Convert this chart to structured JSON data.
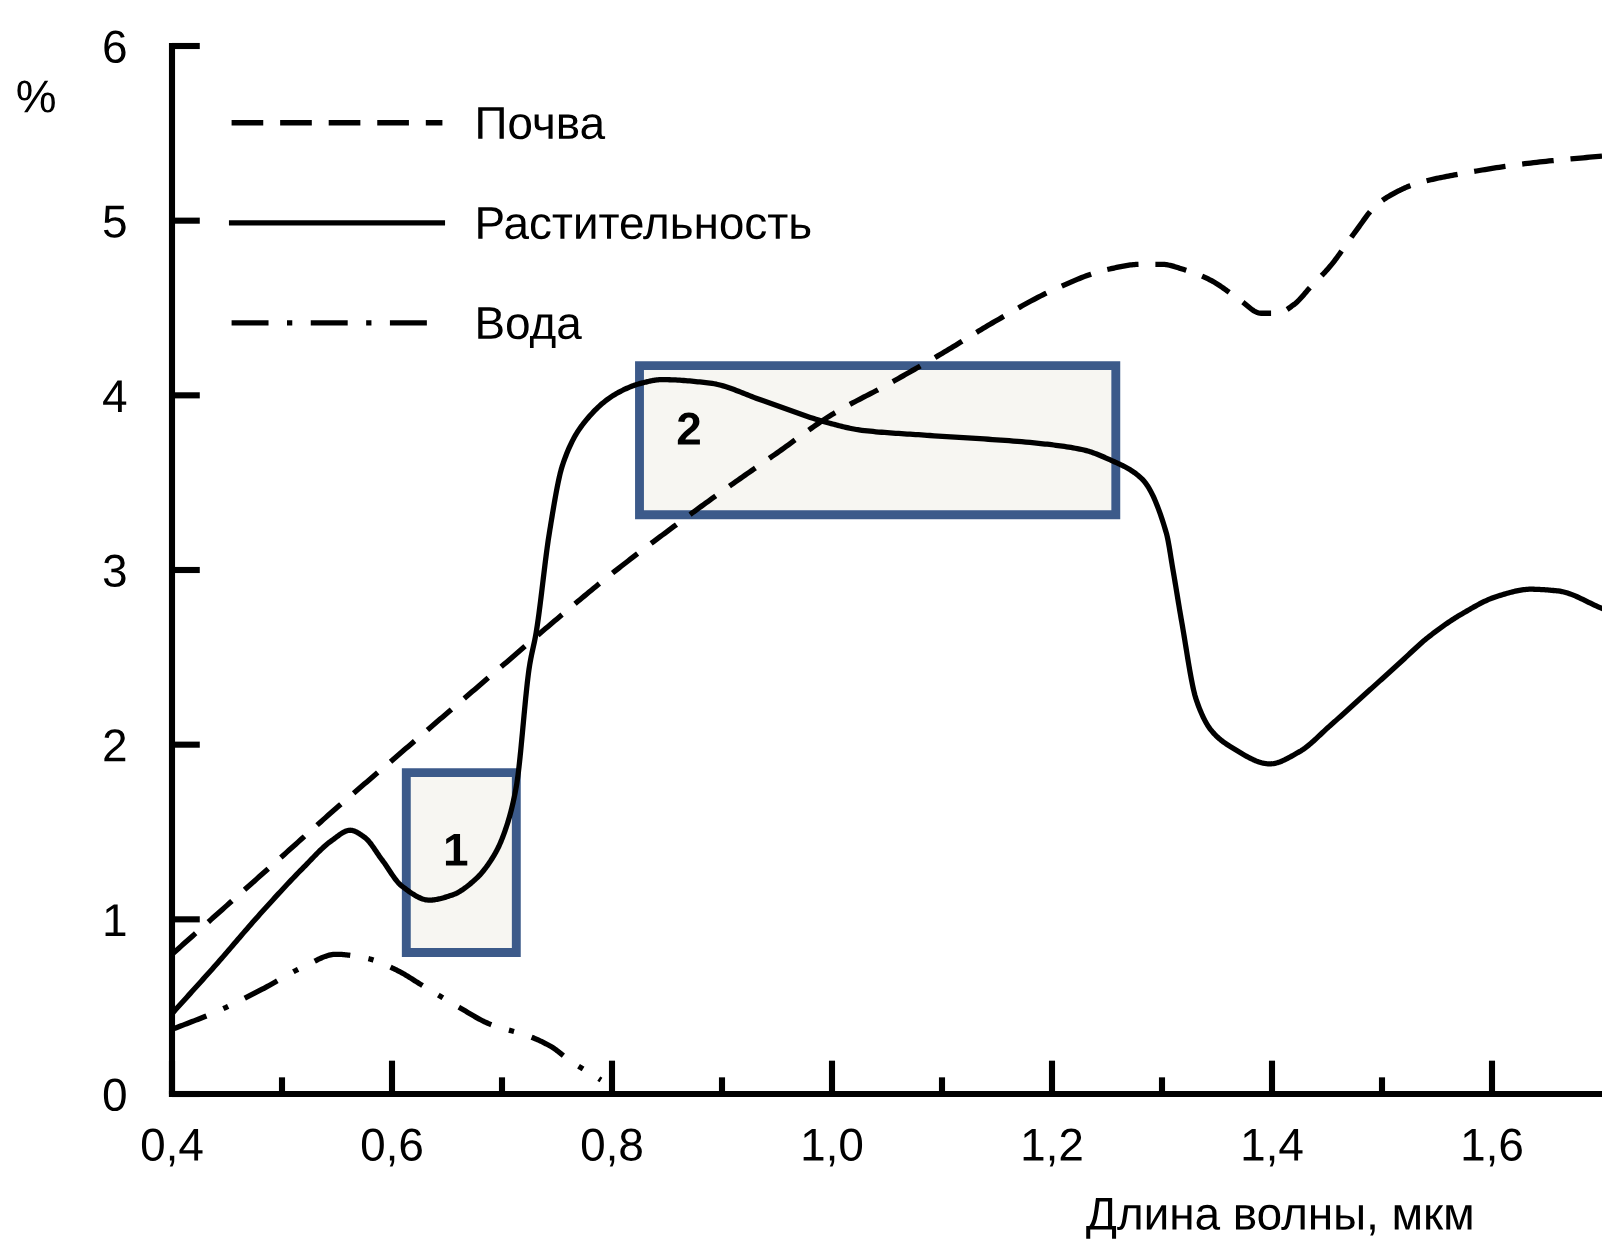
{
  "chart_data": {
    "type": "line",
    "xlabel": "Длина волны, мкм",
    "ylabel": "%",
    "xlim": [
      0.4,
      1.7
    ],
    "ylim": [
      0,
      6
    ],
    "xticks": [
      {
        "value": 0.4,
        "label": "0,4"
      },
      {
        "value": 0.5,
        "label": null
      },
      {
        "value": 0.6,
        "label": "0,6"
      },
      {
        "value": 0.7,
        "label": null
      },
      {
        "value": 0.8,
        "label": "0,8"
      },
      {
        "value": 0.9,
        "label": null
      },
      {
        "value": 1.0,
        "label": "1,0"
      },
      {
        "value": 1.1,
        "label": null
      },
      {
        "value": 1.2,
        "label": "1,2"
      },
      {
        "value": 1.3,
        "label": null
      },
      {
        "value": 1.4,
        "label": "1,4"
      },
      {
        "value": 1.5,
        "label": null
      },
      {
        "value": 1.6,
        "label": "1,6"
      }
    ],
    "yticks": [
      0,
      1,
      2,
      3,
      4,
      5,
      6
    ],
    "legend": "top left",
    "series": [
      {
        "name": "Почва",
        "color": "#000000",
        "line_style": "dashed",
        "x": [
          0.4,
          0.45,
          0.5,
          0.55,
          0.6,
          0.65,
          0.7,
          0.75,
          0.8,
          0.85,
          0.9,
          0.95,
          1.0,
          1.05,
          1.1,
          1.15,
          1.2,
          1.25,
          1.28,
          1.3,
          1.32,
          1.344,
          1.37,
          1.39,
          1.405,
          1.42,
          1.435,
          1.453,
          1.475,
          1.495,
          1.515,
          1.53,
          1.573,
          1.635,
          1.7
        ],
        "values": [
          0.8,
          1.08,
          1.36,
          1.64,
          1.91,
          2.18,
          2.45,
          2.72,
          2.98,
          3.22,
          3.45,
          3.67,
          3.89,
          4.06,
          4.24,
          4.43,
          4.6,
          4.72,
          4.75,
          4.75,
          4.72,
          4.66,
          4.55,
          4.47,
          4.47,
          4.52,
          4.62,
          4.74,
          4.93,
          5.09,
          5.17,
          5.21,
          5.27,
          5.33,
          5.37
        ]
      },
      {
        "name": "Растительность",
        "color": "#000000",
        "line_style": "solid",
        "x": [
          0.4,
          0.44,
          0.48,
          0.52,
          0.545,
          0.562,
          0.575,
          0.591,
          0.609,
          0.634,
          0.655,
          0.676,
          0.694,
          0.704,
          0.713,
          0.725,
          0.731,
          0.743,
          0.755,
          0.773,
          0.804,
          0.827,
          0.845,
          0.889,
          0.937,
          0.998,
          1.027,
          1.089,
          1.18,
          1.227,
          1.253,
          1.282,
          1.304,
          1.31,
          1.318,
          1.331,
          1.345,
          1.362,
          1.398,
          1.425,
          1.453,
          1.483,
          1.513,
          1.543,
          1.573,
          1.605,
          1.635,
          1.66,
          1.7
        ],
        "values": [
          0.46,
          0.74,
          1.03,
          1.3,
          1.45,
          1.51,
          1.47,
          1.34,
          1.19,
          1.11,
          1.14,
          1.23,
          1.38,
          1.53,
          1.76,
          2.45,
          2.64,
          3.21,
          3.6,
          3.83,
          4.01,
          4.07,
          4.09,
          4.07,
          3.97,
          3.84,
          3.8,
          3.77,
          3.73,
          3.69,
          3.63,
          3.52,
          3.21,
          3.0,
          2.7,
          2.26,
          2.08,
          1.99,
          1.89,
          1.96,
          2.11,
          2.28,
          2.45,
          2.62,
          2.75,
          2.85,
          2.89,
          2.88,
          2.78
        ]
      },
      {
        "name": "Вода",
        "color": "#000000",
        "line_style": "dashdot",
        "x": [
          0.4,
          0.44,
          0.482,
          0.52,
          0.549,
          0.575,
          0.604,
          0.628,
          0.66,
          0.689,
          0.725,
          0.745,
          0.762,
          0.785,
          0.79
        ],
        "values": [
          0.37,
          0.47,
          0.6,
          0.73,
          0.8,
          0.78,
          0.71,
          0.62,
          0.5,
          0.4,
          0.33,
          0.27,
          0.19,
          0.1,
          0.08
        ]
      }
    ],
    "bands": [
      {
        "axis": "x",
        "from": 0.613,
        "to": 0.713,
        "label": "1",
        "color": "#3c5a8a"
      },
      {
        "axis": "x",
        "from": 0.825,
        "to": 1.258,
        "label": "2",
        "color": "#3c5a8a"
      }
    ]
  }
}
